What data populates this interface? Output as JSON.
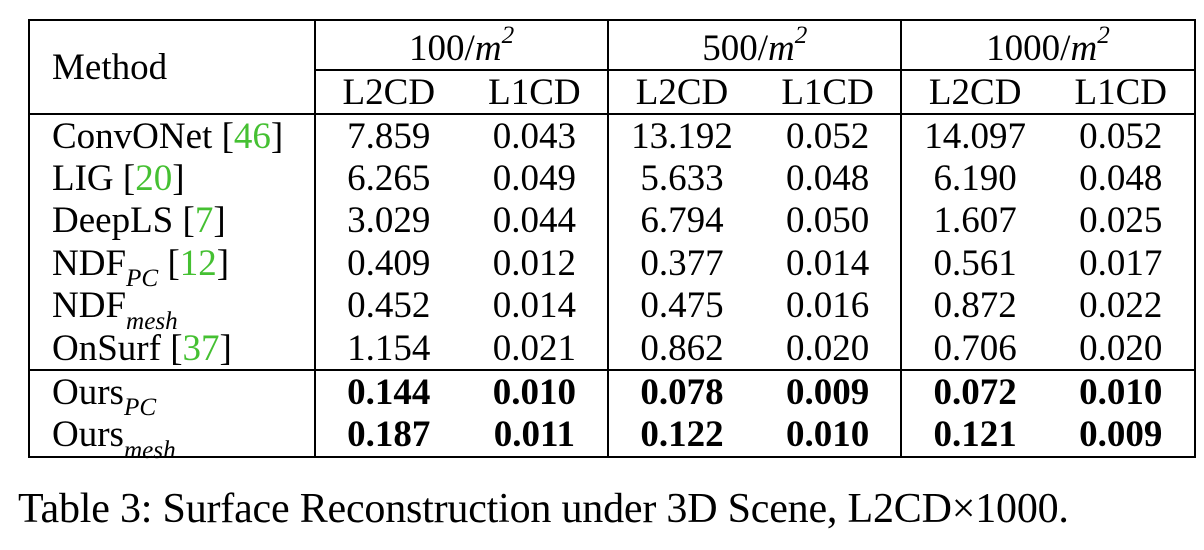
{
  "table": {
    "method_header": "Method",
    "groups": [
      {
        "label": "100/",
        "unit_var": "m",
        "unit_exp": "2"
      },
      {
        "label": "500/",
        "unit_var": "m",
        "unit_exp": "2"
      },
      {
        "label": "1000/",
        "unit_var": "m",
        "unit_exp": "2"
      }
    ],
    "subheaders": [
      "L2CD",
      "L1CD",
      "L2CD",
      "L1CD",
      "L2CD",
      "L1CD"
    ],
    "rows": [
      {
        "name": "ConvONet",
        "sub": "",
        "cite_open": " [",
        "cite": "46",
        "cite_close": "]",
        "values": [
          "7.859",
          "0.043",
          "13.192",
          "0.052",
          "14.097",
          "0.052"
        ]
      },
      {
        "name": "LIG",
        "sub": "",
        "cite_open": " [",
        "cite": "20",
        "cite_close": "]",
        "values": [
          "6.265",
          "0.049",
          "5.633",
          "0.048",
          "6.190",
          "0.048"
        ]
      },
      {
        "name": "DeepLS",
        "sub": "",
        "cite_open": " [",
        "cite": "7",
        "cite_close": "]",
        "values": [
          "3.029",
          "0.044",
          "6.794",
          "0.050",
          "1.607",
          "0.025"
        ]
      },
      {
        "name": "NDF",
        "sub": "PC",
        "cite_open": " [",
        "cite": "12",
        "cite_close": "]",
        "values": [
          "0.409",
          "0.012",
          "0.377",
          "0.014",
          "0.561",
          "0.017"
        ]
      },
      {
        "name": "NDF",
        "sub": "mesh",
        "cite_open": "",
        "cite": "",
        "cite_close": "",
        "values": [
          "0.452",
          "0.014",
          "0.475",
          "0.016",
          "0.872",
          "0.022"
        ]
      },
      {
        "name": "OnSurf",
        "sub": "",
        "cite_open": " [",
        "cite": "37",
        "cite_close": "]",
        "values": [
          "1.154",
          "0.021",
          "0.862",
          "0.020",
          "0.706",
          "0.020"
        ]
      },
      {
        "name": "Ours",
        "sub": "PC",
        "cite_open": "",
        "cite": "",
        "cite_close": "",
        "values": [
          "0.144",
          "0.010",
          "0.078",
          "0.009",
          "0.072",
          "0.010"
        ]
      },
      {
        "name": "Ours",
        "sub": "mesh",
        "cite_open": "",
        "cite": "",
        "cite_close": "",
        "values": [
          "0.187",
          "0.011",
          "0.122",
          "0.010",
          "0.121",
          "0.009"
        ]
      }
    ],
    "cite_color": "#45c032"
  },
  "caption": {
    "prefix": "Table 3: Surface Reconstruction under 3D Scene, L2CD",
    "times": "×",
    "suffix": "1000."
  }
}
